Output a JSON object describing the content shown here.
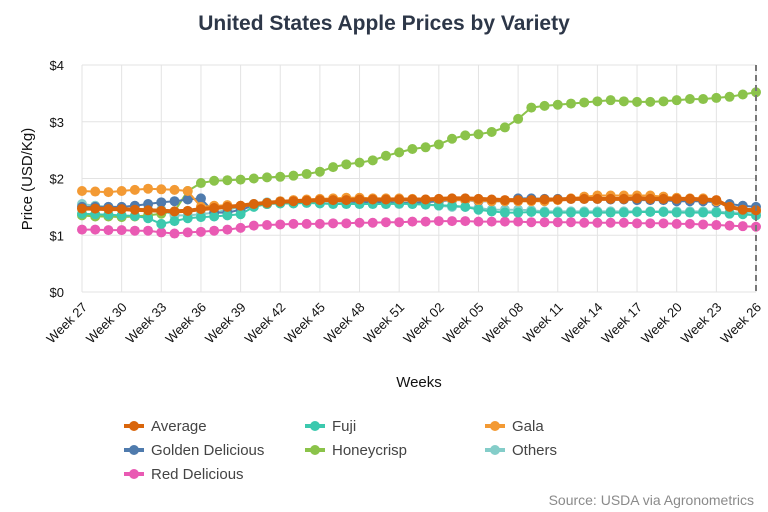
{
  "chart_data": {
    "type": "line",
    "title": "United States Apple Prices by Variety",
    "xlabel": "Weeks",
    "ylabel": "Price (USD/Kg)",
    "ylim": [
      0,
      4
    ],
    "yticks": [
      "$0",
      "$1",
      "$2",
      "$3",
      "$4"
    ],
    "x_ticks": [
      "Week 27",
      "Week 30",
      "Week 33",
      "Week 36",
      "Week 39",
      "Week 42",
      "Week 45",
      "Week 48",
      "Week 51",
      "Week 02",
      "Week 05",
      "Week 08",
      "Week 11",
      "Week 14",
      "Week 17",
      "Week 20",
      "Week 23",
      "Week 26"
    ],
    "x": [
      "Week 27",
      "Week 28",
      "Week 29",
      "Week 30",
      "Week 31",
      "Week 32",
      "Week 33",
      "Week 34",
      "Week 35",
      "Week 36",
      "Week 37",
      "Week 38",
      "Week 39",
      "Week 40",
      "Week 41",
      "Week 42",
      "Week 43",
      "Week 44",
      "Week 45",
      "Week 46",
      "Week 47",
      "Week 48",
      "Week 49",
      "Week 50",
      "Week 51",
      "Week 52",
      "Week 01",
      "Week 02",
      "Week 03",
      "Week 04",
      "Week 05",
      "Week 06",
      "Week 07",
      "Week 08",
      "Week 09",
      "Week 10",
      "Week 11",
      "Week 12",
      "Week 13",
      "Week 14",
      "Week 15",
      "Week 16",
      "Week 17",
      "Week 18",
      "Week 19",
      "Week 20",
      "Week 21",
      "Week 22",
      "Week 23",
      "Week 24",
      "Week 25",
      "Week 26"
    ],
    "grid": true,
    "legend_position": "bottom",
    "source": "Source: USDA via Agronometrics",
    "series": [
      {
        "name": "Average",
        "color": "#d9650b",
        "values": [
          1.47,
          1.47,
          1.46,
          1.46,
          1.45,
          1.44,
          1.43,
          1.42,
          1.43,
          1.46,
          1.48,
          1.5,
          1.52,
          1.55,
          1.57,
          1.59,
          1.6,
          1.61,
          1.62,
          1.62,
          1.62,
          1.63,
          1.63,
          1.63,
          1.63,
          1.63,
          1.63,
          1.64,
          1.65,
          1.65,
          1.64,
          1.63,
          1.62,
          1.62,
          1.62,
          1.63,
          1.63,
          1.64,
          1.64,
          1.64,
          1.64,
          1.64,
          1.65,
          1.64,
          1.64,
          1.64,
          1.64,
          1.63,
          1.62,
          1.5,
          1.45,
          1.44
        ]
      },
      {
        "name": "Fuji",
        "color": "#3cc9ae",
        "values": [
          1.38,
          1.37,
          1.36,
          1.35,
          1.34,
          1.3,
          1.2,
          1.25,
          1.3,
          1.32,
          1.33,
          1.35,
          1.37,
          1.5,
          1.55,
          1.56,
          1.56,
          1.57,
          1.56,
          1.55,
          1.55,
          1.55,
          1.55,
          1.55,
          1.56,
          1.55,
          1.54,
          1.53,
          1.52,
          1.5,
          1.45,
          1.42,
          1.4,
          1.4,
          1.41,
          1.4,
          1.4,
          1.4,
          1.4,
          1.4,
          1.4,
          1.4,
          1.41,
          1.41,
          1.41,
          1.4,
          1.4,
          1.4,
          1.4,
          1.38,
          1.37,
          1.35
        ]
      },
      {
        "name": "Gala",
        "color": "#f39a34",
        "values": [
          1.78,
          1.77,
          1.76,
          1.78,
          1.8,
          1.82,
          1.81,
          1.8,
          1.78,
          1.5,
          1.52,
          1.53,
          1.52,
          1.53,
          1.55,
          1.6,
          1.62,
          1.63,
          1.64,
          1.65,
          1.66,
          1.66,
          1.65,
          1.65,
          1.65,
          1.64,
          1.63,
          1.62,
          1.62,
          1.62,
          1.61,
          1.6,
          1.6,
          1.6,
          1.6,
          1.6,
          1.62,
          1.65,
          1.68,
          1.7,
          1.7,
          1.7,
          1.7,
          1.7,
          1.68,
          1.66,
          1.65,
          1.65,
          1.6,
          1.5,
          1.45,
          1.42
        ]
      },
      {
        "name": "Golden Delicious",
        "color": "#4f7bad",
        "values": [
          1.5,
          1.5,
          1.5,
          1.5,
          1.52,
          1.55,
          1.58,
          1.6,
          1.63,
          1.65,
          1.4,
          1.4,
          1.45,
          1.52,
          1.55,
          1.58,
          1.6,
          1.6,
          1.6,
          1.6,
          1.6,
          1.58,
          1.58,
          1.58,
          1.57,
          1.57,
          1.58,
          1.6,
          1.62,
          1.62,
          1.6,
          1.6,
          1.6,
          1.65,
          1.65,
          1.64,
          1.64,
          1.64,
          1.64,
          1.64,
          1.63,
          1.63,
          1.62,
          1.62,
          1.62,
          1.6,
          1.6,
          1.6,
          1.58,
          1.55,
          1.52,
          1.5
        ]
      },
      {
        "name": "Honeycrisp",
        "color": "#8bc34a",
        "values": [
          1.35,
          1.33,
          1.33,
          1.32,
          1.33,
          1.35,
          1.38,
          1.42,
          1.78,
          1.92,
          1.96,
          1.97,
          1.98,
          2.0,
          2.02,
          2.03,
          2.05,
          2.08,
          2.12,
          2.2,
          2.25,
          2.28,
          2.32,
          2.4,
          2.46,
          2.52,
          2.55,
          2.6,
          2.7,
          2.76,
          2.78,
          2.82,
          2.9,
          3.05,
          3.25,
          3.28,
          3.3,
          3.32,
          3.34,
          3.36,
          3.38,
          3.36,
          3.35,
          3.35,
          3.36,
          3.38,
          3.4,
          3.4,
          3.42,
          3.44,
          3.48,
          3.52
        ]
      },
      {
        "name": "Others",
        "color": "#84cdc9",
        "values": [
          1.55,
          1.52,
          1.5,
          1.48,
          1.46,
          1.45,
          1.45,
          1.35,
          1.35,
          1.37,
          1.4,
          1.45,
          1.5,
          1.55,
          1.58,
          1.6,
          1.6,
          1.6,
          1.6,
          1.6,
          1.58,
          1.58,
          1.56,
          1.55,
          1.55,
          1.55,
          1.54,
          1.52,
          1.5,
          1.5,
          1.48,
          1.45,
          1.45,
          1.45,
          1.44,
          1.42,
          1.42,
          1.42,
          1.42,
          1.42,
          1.42,
          1.42,
          1.42,
          1.42,
          1.42,
          1.42,
          1.42,
          1.42,
          1.42,
          1.4,
          1.4,
          1.4
        ]
      },
      {
        "name": "Red Delicious",
        "color": "#e95ab3",
        "values": [
          1.1,
          1.1,
          1.09,
          1.09,
          1.08,
          1.08,
          1.05,
          1.03,
          1.05,
          1.06,
          1.08,
          1.1,
          1.13,
          1.17,
          1.18,
          1.19,
          1.2,
          1.2,
          1.2,
          1.21,
          1.21,
          1.22,
          1.22,
          1.23,
          1.23,
          1.24,
          1.24,
          1.25,
          1.25,
          1.25,
          1.24,
          1.24,
          1.24,
          1.24,
          1.23,
          1.23,
          1.23,
          1.23,
          1.22,
          1.22,
          1.22,
          1.22,
          1.21,
          1.21,
          1.21,
          1.2,
          1.2,
          1.19,
          1.18,
          1.17,
          1.16,
          1.15
        ]
      }
    ]
  }
}
